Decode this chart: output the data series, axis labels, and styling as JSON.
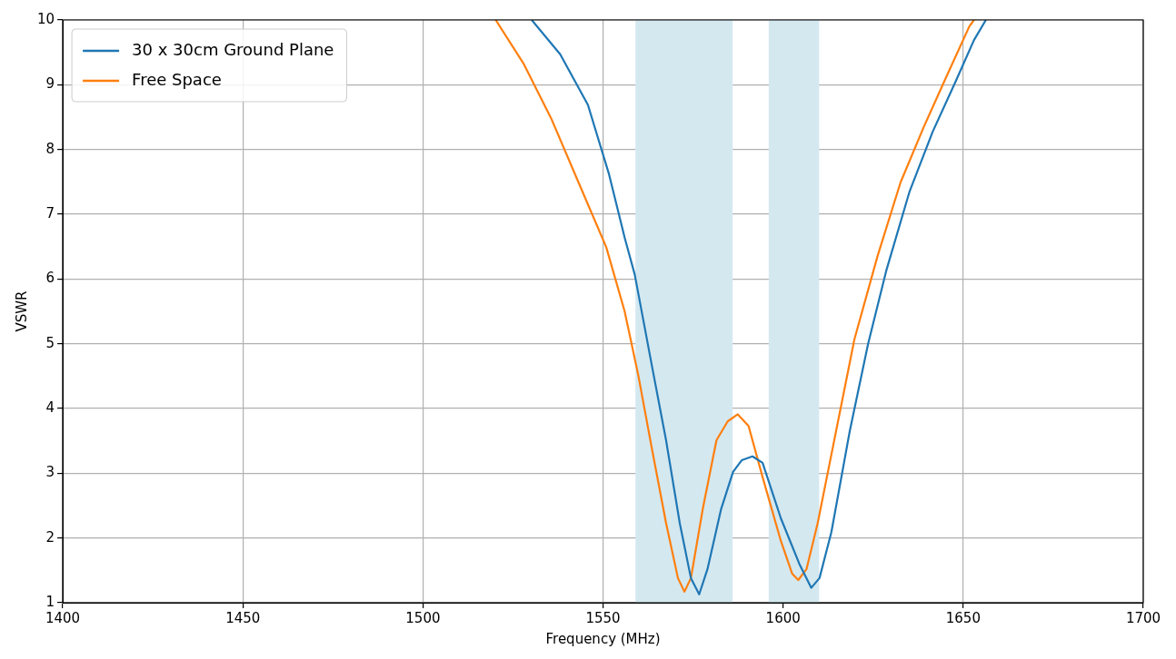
{
  "chart_data": {
    "type": "line",
    "xlabel": "Frequency (MHz)",
    "ylabel": "VSWR",
    "xlim": [
      1400,
      1700
    ],
    "xticks": [
      1400,
      1450,
      1500,
      1550,
      1600,
      1650,
      1700
    ],
    "ylim": [
      1,
      10
    ],
    "yticks": [
      1,
      2,
      3,
      4,
      5,
      6,
      7,
      8,
      9,
      10
    ],
    "grid": true,
    "legend": "top left",
    "marker": "none",
    "line_style": "solid",
    "bands": [
      {
        "axis": "x",
        "from": 1559,
        "to": 1586,
        "color": "#d4e8f0"
      },
      {
        "axis": "x",
        "from": 1596,
        "to": 1610,
        "color": "#d4e8f0"
      }
    ],
    "series": [
      {
        "name": "30 x 30cm Ground Plane",
        "color": "#1f77b4",
        "x": [
          1530.2,
          1538.1,
          1545.8,
          1551.6,
          1556.0,
          1558.8,
          1563.6,
          1567.5,
          1571.3,
          1574.4,
          1576.7,
          1579.0,
          1582.8,
          1586.1,
          1588.5,
          1591.5,
          1594.3,
          1599.4,
          1604.5,
          1607.8,
          1610.1,
          1613.4,
          1618.5,
          1623.6,
          1628.7,
          1635.1,
          1641.5,
          1647.9,
          1653.0,
          1656.3
        ],
        "values": [
          10,
          9.47,
          8.69,
          7.63,
          6.64,
          6.07,
          4.65,
          3.51,
          2.23,
          1.38,
          1.13,
          1.52,
          2.45,
          3.02,
          3.2,
          3.26,
          3.16,
          2.3,
          1.6,
          1.23,
          1.38,
          2.09,
          3.65,
          5.0,
          6.14,
          7.35,
          8.27,
          9.05,
          9.69,
          10
        ]
      },
      {
        "name": "Free Space",
        "color": "#ff7f0e",
        "x": [
          1520.2,
          1527.9,
          1535.6,
          1543.2,
          1550.9,
          1556.0,
          1559.8,
          1563.6,
          1567.5,
          1570.8,
          1572.6,
          1574.4,
          1577.7,
          1581.5,
          1584.6,
          1587.4,
          1590.4,
          1594.3,
          1599.4,
          1602.5,
          1604.2,
          1606.5,
          1609.6,
          1614.7,
          1619.8,
          1626.2,
          1632.6,
          1639.0,
          1645.3,
          1651.7,
          1653.0
        ],
        "values": [
          10,
          9.33,
          8.48,
          7.49,
          6.49,
          5.5,
          4.51,
          3.37,
          2.23,
          1.38,
          1.17,
          1.38,
          2.45,
          3.51,
          3.8,
          3.91,
          3.73,
          2.94,
          1.95,
          1.45,
          1.35,
          1.52,
          2.23,
          3.65,
          5.07,
          6.35,
          7.49,
          8.34,
          9.12,
          9.9,
          10
        ]
      }
    ]
  }
}
